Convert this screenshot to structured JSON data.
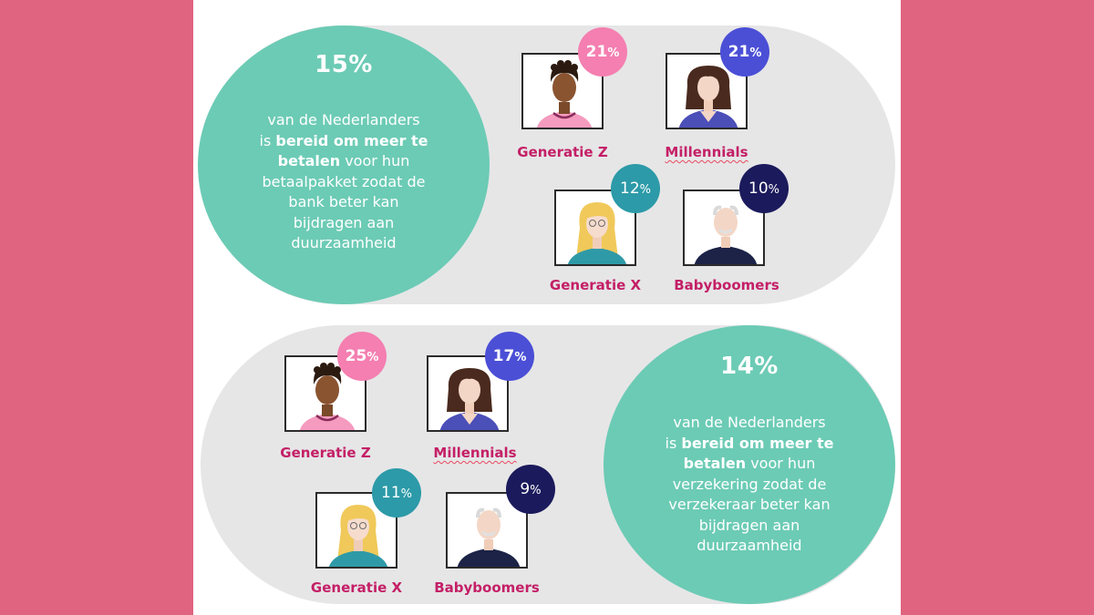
{
  "panels": [
    {
      "headline": "15%",
      "desc_1": "van de Nederlanders",
      "desc_2_plain": "is ",
      "desc_2_bold": "bereid om meer te",
      "desc_3_bold": "betalen",
      "desc_3_plain": " voor hun",
      "desc_4": "betaalpakket zodat de",
      "desc_5": "bank beter kan",
      "desc_6": "bijdragen aan",
      "desc_7": "duurzaamheid",
      "generations": [
        {
          "label": "Generatie Z",
          "value": "21",
          "suffix": "%"
        },
        {
          "label": "Millennials",
          "value": "21",
          "suffix": "%"
        },
        {
          "label": "Generatie X",
          "value": "12",
          "suffix": "%"
        },
        {
          "label": "Babyboomers",
          "value": "10",
          "suffix": "%"
        }
      ]
    },
    {
      "headline": "14%",
      "desc_1": "van de Nederlanders",
      "desc_2_plain": "is ",
      "desc_2_bold": "bereid om meer te",
      "desc_3_bold": "betalen",
      "desc_3_plain": " voor hun",
      "desc_4": "verzekering zodat de",
      "desc_5": "verzekeraar beter kan",
      "desc_6": "bijdragen aan",
      "desc_7": "duurzaamheid",
      "generations": [
        {
          "label": "Generatie Z",
          "value": "25",
          "suffix": "%"
        },
        {
          "label": "Millennials",
          "value": "17",
          "suffix": "%"
        },
        {
          "label": "Generatie X",
          "value": "11",
          "suffix": "%"
        },
        {
          "label": "Babyboomers",
          "value": "9",
          "suffix": "%"
        }
      ]
    }
  ],
  "colors": {
    "page_bg": "#e0647f",
    "teal_circle": "#6ccbb5",
    "pill_gray": "#e6e6e7",
    "badge_genz": "#f47fb0",
    "badge_millennials": "#4b4fd6",
    "badge_genx": "#2c9aa8",
    "badge_boomers": "#1b1a5c",
    "label_text": "#c41f66"
  }
}
